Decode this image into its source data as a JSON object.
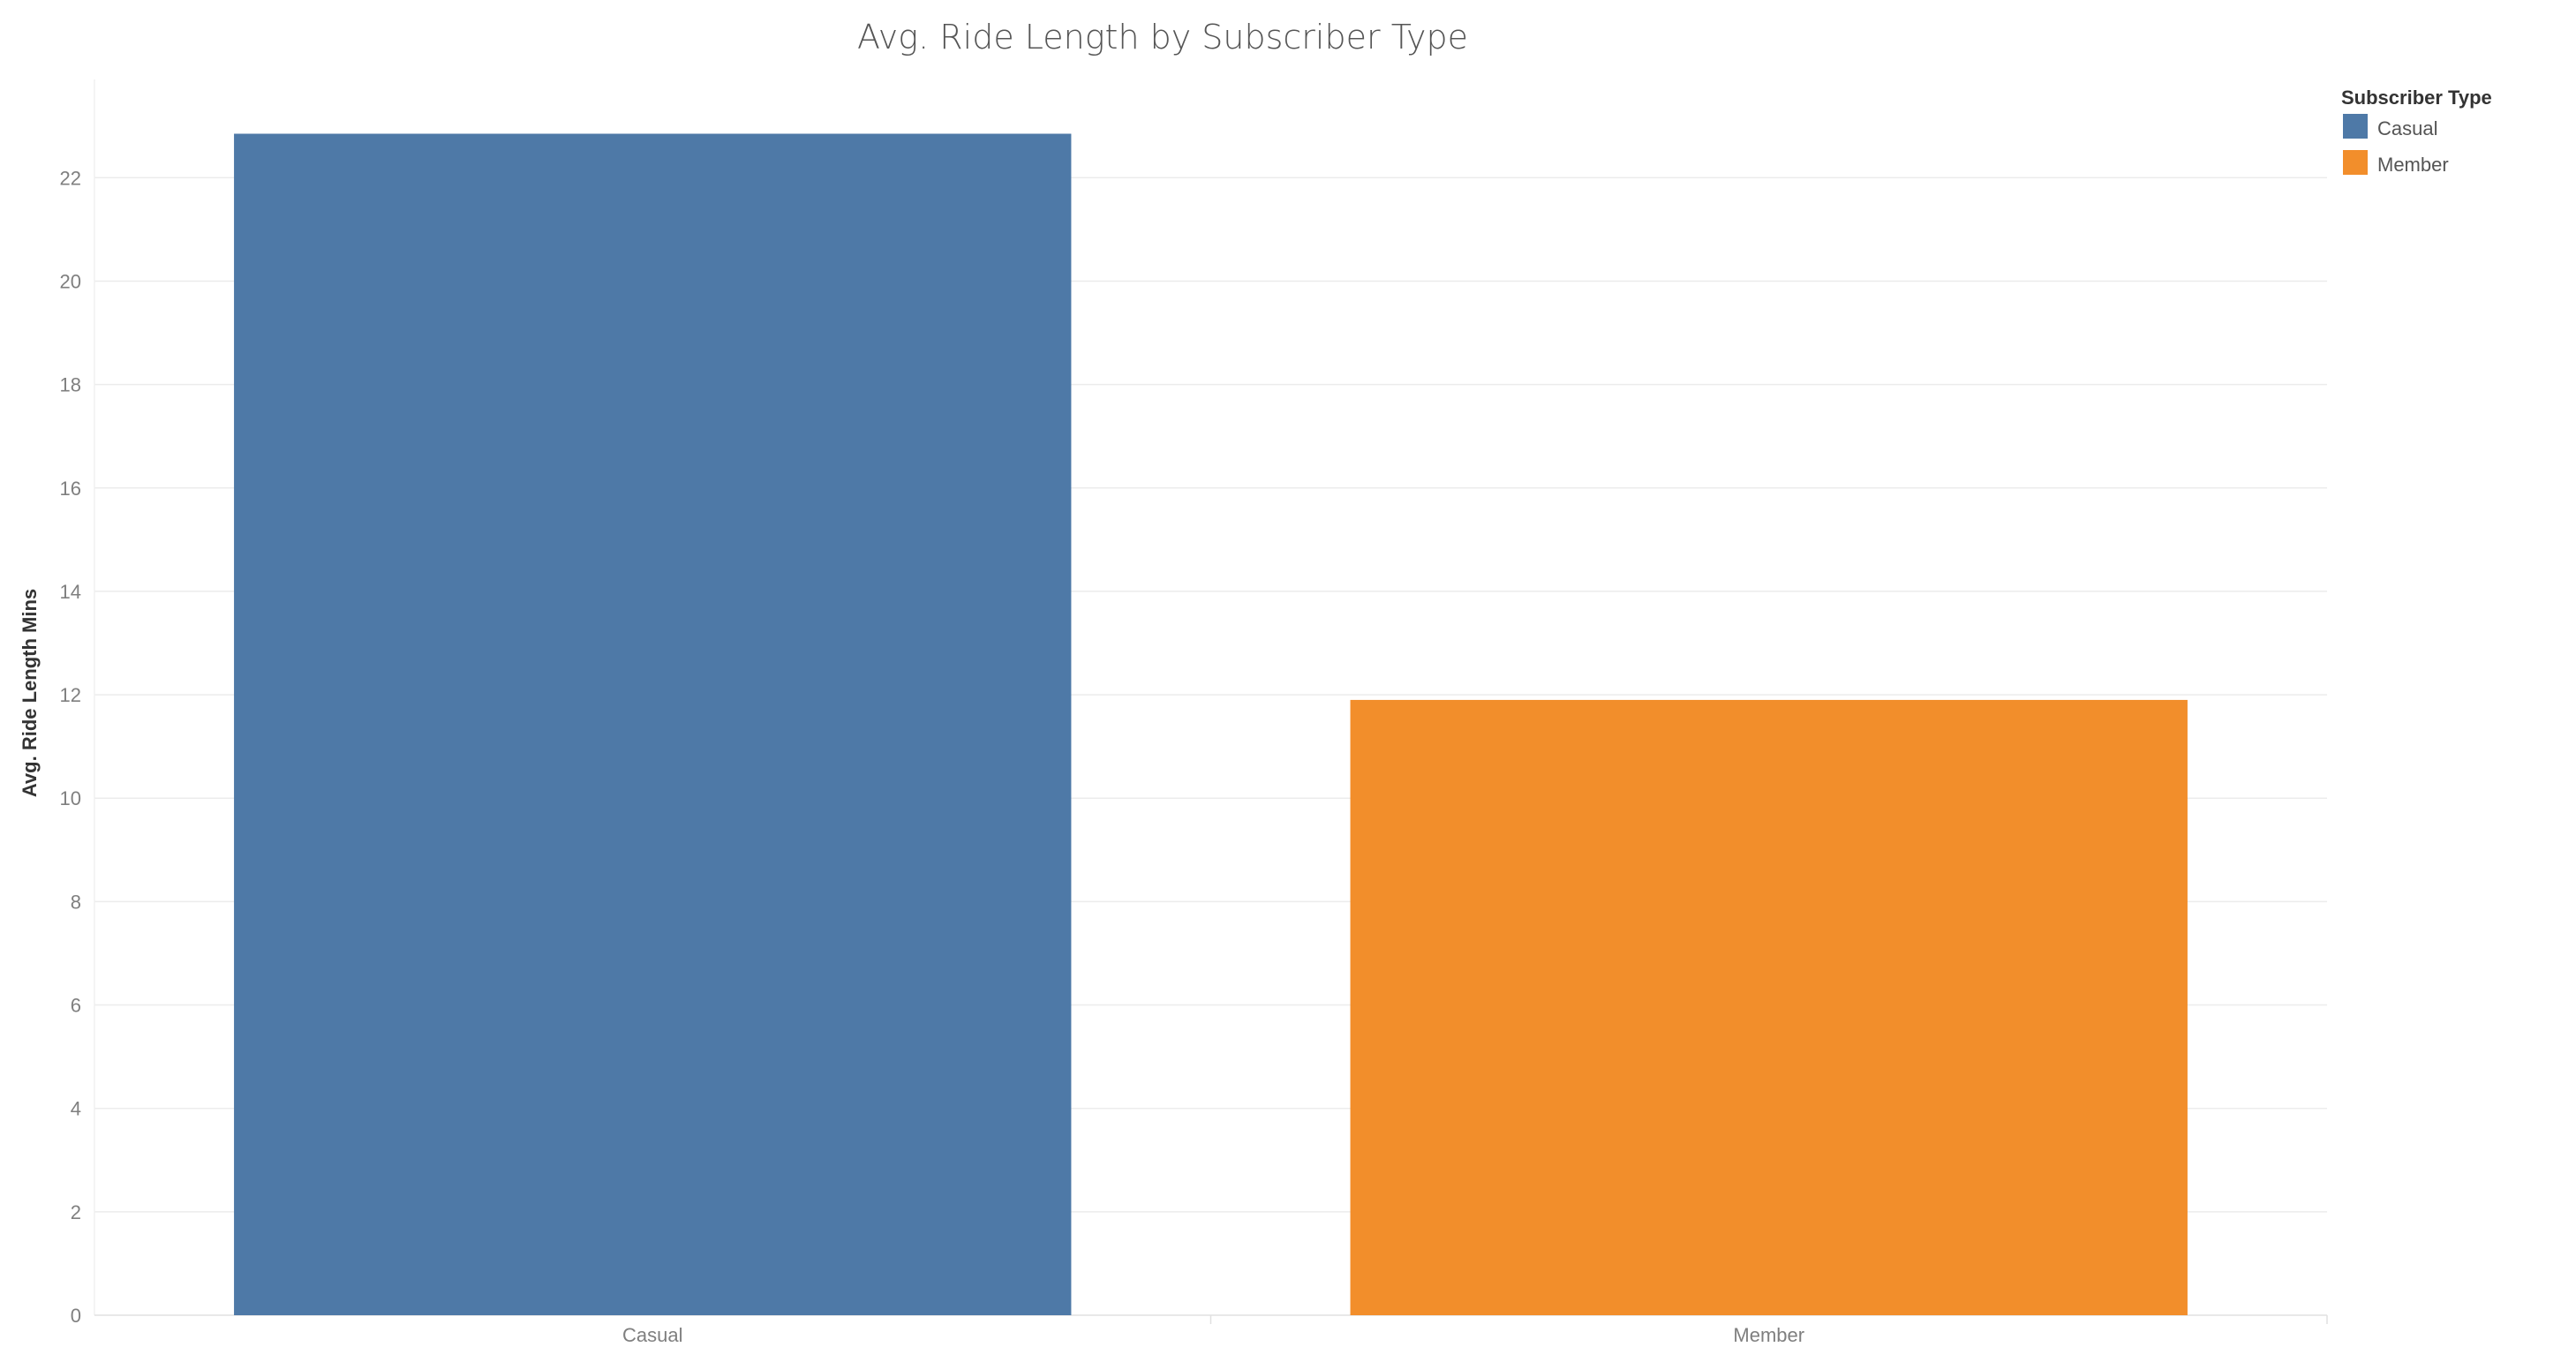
{
  "chart_data": {
    "type": "bar",
    "title": "Avg. Ride Length by Subscriber Type",
    "xlabel": "",
    "ylabel": "Avg. Ride Length Mins",
    "categories": [
      "Casual",
      "Member"
    ],
    "values": [
      22.85,
      11.9
    ],
    "colors": [
      "#4e79a7",
      "#f28e2b"
    ],
    "ylim": [
      0,
      23.9
    ],
    "yticks": [
      0,
      2,
      4,
      6,
      8,
      10,
      12,
      14,
      16,
      18,
      20,
      22
    ],
    "grid": true,
    "legend": {
      "title": "Subscriber Type",
      "placement": "top-right",
      "items": [
        {
          "label": "Casual",
          "color": "#4e79a7"
        },
        {
          "label": "Member",
          "color": "#f28e2b"
        }
      ]
    }
  }
}
